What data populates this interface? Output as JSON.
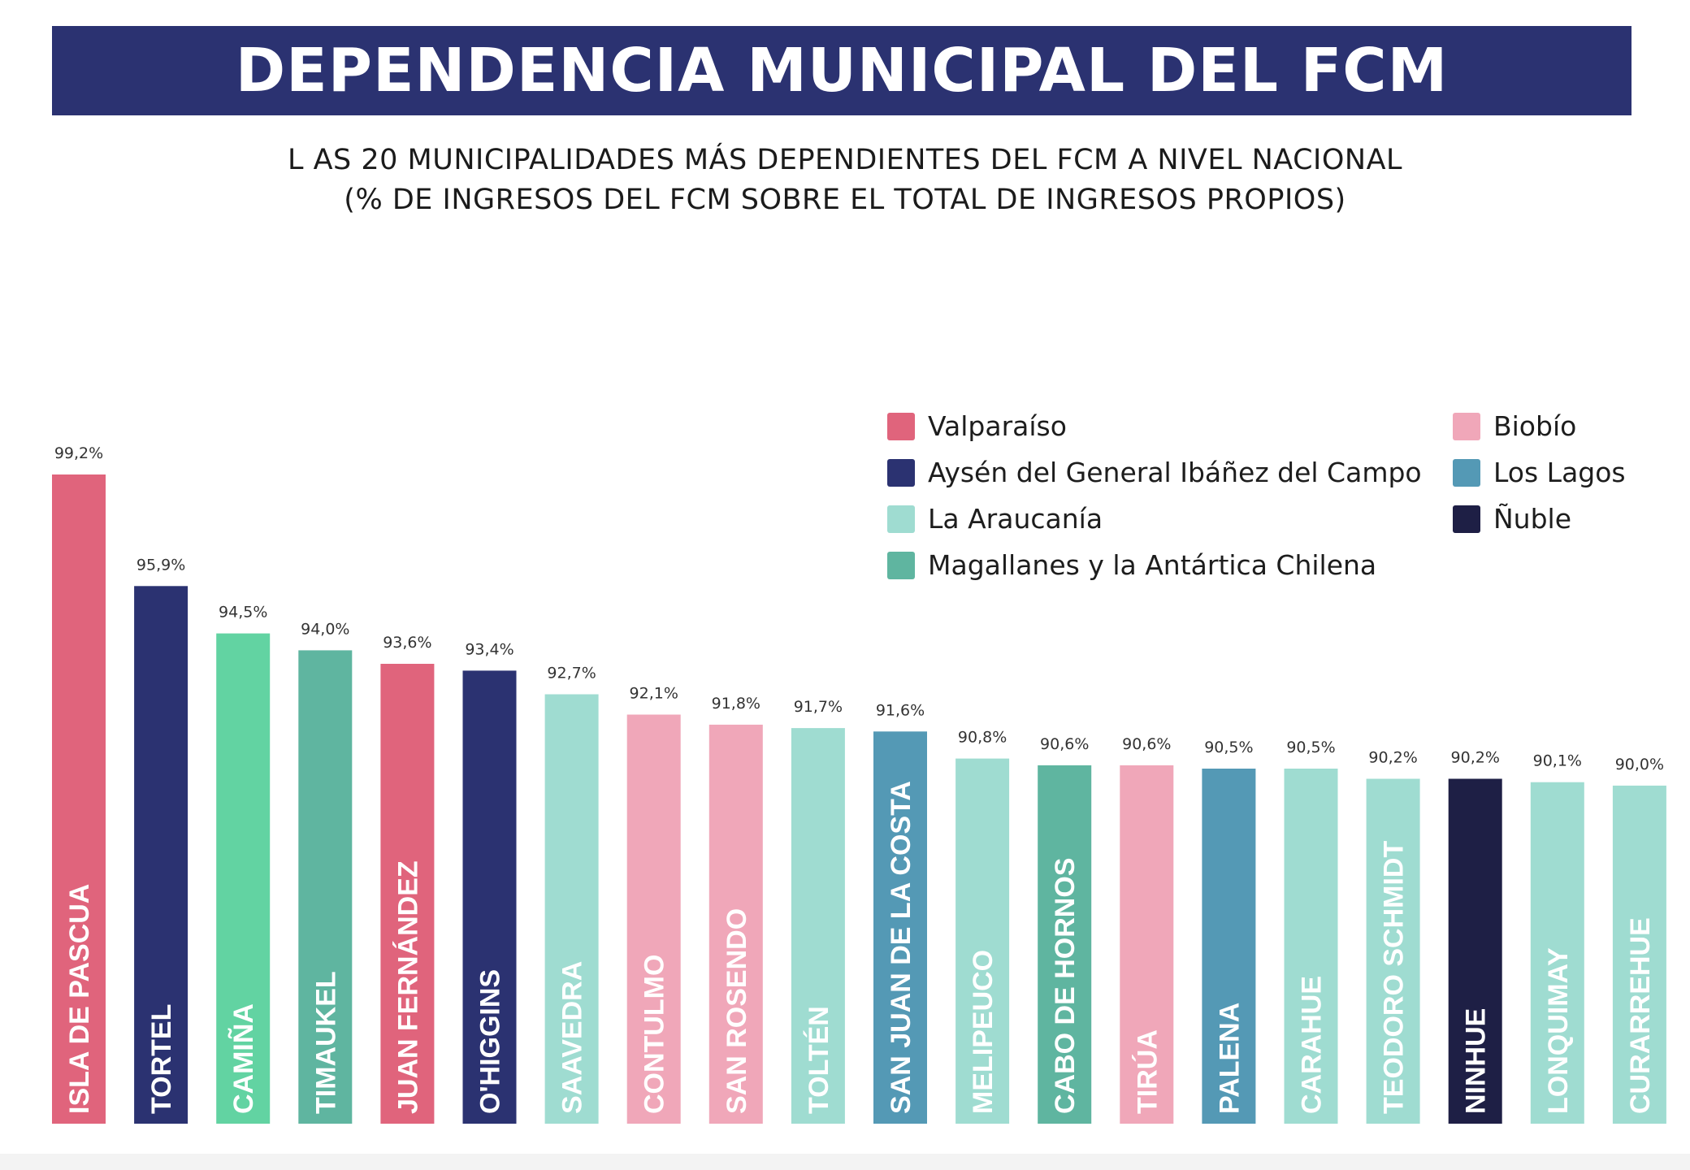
{
  "header": {
    "title": "DEPENDENCIA MUNICIPAL DEL FCM",
    "subtitle_line1": "L AS 20 MUNICIPALIDADES MÁS DEPENDIENTES DEL FCM A NIVEL NACIONAL",
    "subtitle_line2": "(% DE INGRESOS DEL FCM SOBRE EL TOTAL DE INGRESOS PROPIOS)"
  },
  "legend": {
    "col1": [
      {
        "label": "Valparaíso",
        "color": "#e0647c"
      },
      {
        "label": "Aysén  del General Ibáñez del Campo",
        "color": "#2b3271"
      },
      {
        "label": "La Araucanía",
        "color": "#9fdcd1"
      },
      {
        "label": "Magallanes y la Antártica Chilena",
        "color": "#5fb5a0"
      }
    ],
    "col2": [
      {
        "label": "Biobío",
        "color": "#f0a7b9"
      },
      {
        "label": "Los Lagos",
        "color": "#5499b5"
      },
      {
        "label": "Ñuble",
        "color": "#1e1f45"
      }
    ]
  },
  "chart_data": {
    "type": "bar",
    "title": "DEPENDENCIA MUNICIPAL DEL FCM",
    "subtitle": "L AS 20 MUNICIPALIDADES MÁS DEPENDIENTES DEL FCM A NIVEL NACIONAL (% DE INGRESOS DEL FCM SOBRE EL TOTAL DE INGRESOS PROPIOS)",
    "xlabel": "",
    "ylabel": "",
    "ylim": [
      80,
      100
    ],
    "grid": false,
    "legend_position": "top-right",
    "categories": [
      "ISLA DE PASCUA",
      "TORTEL",
      "CAMIÑA",
      "TIMAUKEL",
      "JUAN FERNÁNDEZ",
      "O'HIGGINS",
      "SAAVEDRA",
      "CONTULMO",
      "SAN ROSENDO",
      "TOLTÉN",
      "SAN JUAN DE LA COSTA",
      "MELIPEUCO",
      "CABO DE HORNOS",
      "TIRÚA",
      "PALENA",
      "CARAHUE",
      "TEODORO SCHMIDT",
      "NINHUE",
      "LONQUIMAY",
      "CURARREHUE"
    ],
    "values": [
      99.2,
      95.9,
      94.5,
      94.0,
      93.6,
      93.4,
      92.7,
      92.1,
      91.8,
      91.7,
      91.6,
      90.8,
      90.6,
      90.6,
      90.5,
      90.5,
      90.2,
      90.2,
      90.1,
      90.0
    ],
    "value_labels": [
      "99,2%",
      "95,9%",
      "94,5%",
      "94,0%",
      "93,6%",
      "93,4%",
      "92,7%",
      "92,1%",
      "91,8%",
      "91,7%",
      "91,6%",
      "90,8%",
      "90,6%",
      "90,6%",
      "90,5%",
      "90,5%",
      "90,2%",
      "90,2%",
      "90,1%",
      "90,0%"
    ],
    "colors": [
      "#e0647c",
      "#2b3271",
      "#62d3a2",
      "#5fb5a0",
      "#e0647c",
      "#2b3271",
      "#9fdcd1",
      "#f0a7b9",
      "#f0a7b9",
      "#9fdcd1",
      "#5499b5",
      "#9fdcd1",
      "#5fb5a0",
      "#f0a7b9",
      "#5499b5",
      "#9fdcd1",
      "#9fdcd1",
      "#1e1f45",
      "#9fdcd1",
      "#9fdcd1"
    ]
  }
}
